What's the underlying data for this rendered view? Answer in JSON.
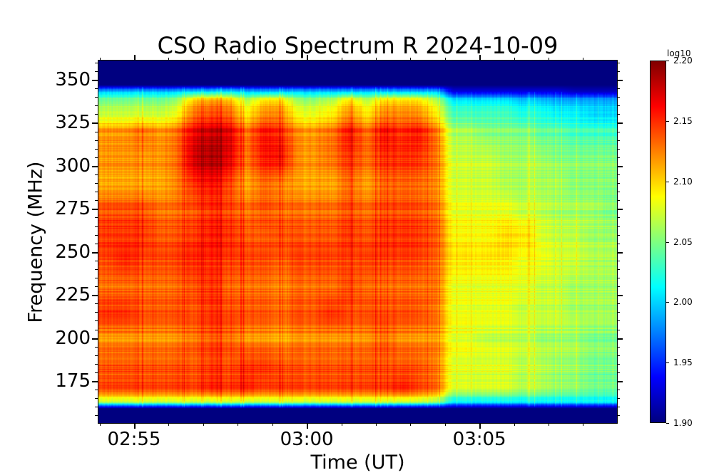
{
  "chart_data": {
    "type": "heatmap",
    "title": "CSO Radio Spectrum R 2024-10-09",
    "xlabel": "Time (UT)",
    "ylabel": "Frequency (MHz)",
    "x_range": [
      "02:53:58",
      "03:08:59"
    ],
    "y_range": [
      150.6,
      361.2
    ],
    "x_ticks": [
      "02:55",
      "03:00",
      "03:05"
    ],
    "x_minor_tick_step_min": 1,
    "y_ticks": [
      175,
      200,
      225,
      250,
      275,
      300,
      325,
      350
    ],
    "y_minor_tick_step": 5,
    "colorbar": {
      "label": "log10",
      "range": [
        1.9,
        2.2
      ],
      "ticks": [
        "1.90",
        "1.95",
        "2.00",
        "2.05",
        "2.10",
        "2.15",
        "2.20"
      ],
      "colormap": "jet"
    },
    "time_start": "02:54:00",
    "time_step_s": 30,
    "rows": [
      {
        "freq": 361,
        "values": 1.9
      },
      {
        "freq": 347,
        "values": 1.9
      },
      {
        "freq": 343,
        "values": [
          2.0,
          2.0,
          2.0,
          2.0,
          2.0,
          2.01,
          2.01,
          2.01,
          2.0,
          2.0,
          2.0,
          2.0,
          2.0,
          2.0,
          2.0,
          2.0,
          2.0,
          2.0,
          2.0,
          2.0,
          1.93,
          1.93,
          1.93,
          1.93,
          1.93,
          1.93,
          1.93,
          1.92,
          1.92,
          1.92
        ]
      },
      {
        "freq": 338,
        "values": [
          2.05,
          2.05,
          2.05,
          2.05,
          2.06,
          2.11,
          2.12,
          2.11,
          2.07,
          2.1,
          2.1,
          2.06,
          2.06,
          2.07,
          2.1,
          2.07,
          2.1,
          2.1,
          2.1,
          2.07,
          2.01,
          2.01,
          2.01,
          2.01,
          2.0,
          2.0,
          1.99,
          1.99,
          1.99,
          1.99
        ]
      },
      {
        "freq": 330,
        "values": [
          2.07,
          2.07,
          2.07,
          2.07,
          2.08,
          2.13,
          2.14,
          2.13,
          2.09,
          2.12,
          2.12,
          2.08,
          2.08,
          2.09,
          2.12,
          2.09,
          2.12,
          2.12,
          2.12,
          2.09,
          2.03,
          2.03,
          2.03,
          2.03,
          2.02,
          2.02,
          2.01,
          2.01,
          2.0,
          2.0
        ]
      },
      {
        "freq": 320,
        "values": [
          2.12,
          2.12,
          2.13,
          2.12,
          2.13,
          2.17,
          2.18,
          2.17,
          2.13,
          2.16,
          2.15,
          2.12,
          2.12,
          2.13,
          2.16,
          2.13,
          2.16,
          2.15,
          2.16,
          2.13,
          2.06,
          2.06,
          2.05,
          2.05,
          2.05,
          2.04,
          2.04,
          2.03,
          2.03,
          2.03
        ]
      },
      {
        "freq": 305,
        "values": [
          2.12,
          2.12,
          2.12,
          2.12,
          2.13,
          2.18,
          2.19,
          2.17,
          2.13,
          2.16,
          2.16,
          2.12,
          2.12,
          2.13,
          2.15,
          2.13,
          2.15,
          2.15,
          2.15,
          2.13,
          2.07,
          2.07,
          2.07,
          2.06,
          2.06,
          2.06,
          2.05,
          2.05,
          2.05,
          2.05
        ]
      },
      {
        "freq": 290,
        "values": [
          2.11,
          2.11,
          2.11,
          2.11,
          2.12,
          2.15,
          2.16,
          2.14,
          2.11,
          2.13,
          2.12,
          2.11,
          2.11,
          2.11,
          2.13,
          2.11,
          2.13,
          2.13,
          2.13,
          2.12,
          2.07,
          2.07,
          2.07,
          2.06,
          2.06,
          2.06,
          2.06,
          2.05,
          2.05,
          2.05
        ]
      },
      {
        "freq": 275,
        "values": [
          2.14,
          2.14,
          2.14,
          2.13,
          2.13,
          2.14,
          2.15,
          2.14,
          2.13,
          2.14,
          2.13,
          2.13,
          2.13,
          2.13,
          2.14,
          2.13,
          2.14,
          2.14,
          2.14,
          2.13,
          2.08,
          2.08,
          2.08,
          2.08,
          2.07,
          2.07,
          2.06,
          2.06,
          2.06,
          2.05
        ]
      },
      {
        "freq": 260,
        "values": [
          2.15,
          2.15,
          2.15,
          2.14,
          2.14,
          2.15,
          2.16,
          2.15,
          2.14,
          2.14,
          2.14,
          2.14,
          2.14,
          2.14,
          2.15,
          2.14,
          2.15,
          2.15,
          2.15,
          2.14,
          2.09,
          2.09,
          2.09,
          2.1,
          2.1,
          2.08,
          2.07,
          2.07,
          2.06,
          2.06
        ]
      },
      {
        "freq": 245,
        "values": [
          2.14,
          2.15,
          2.14,
          2.14,
          2.14,
          2.15,
          2.15,
          2.14,
          2.14,
          2.14,
          2.13,
          2.14,
          2.14,
          2.14,
          2.14,
          2.14,
          2.14,
          2.14,
          2.14,
          2.13,
          2.09,
          2.09,
          2.09,
          2.09,
          2.08,
          2.08,
          2.07,
          2.07,
          2.06,
          2.06
        ]
      },
      {
        "freq": 230,
        "values": [
          2.13,
          2.13,
          2.13,
          2.13,
          2.13,
          2.14,
          2.15,
          2.13,
          2.13,
          2.13,
          2.12,
          2.13,
          2.13,
          2.13,
          2.14,
          2.13,
          2.13,
          2.13,
          2.13,
          2.13,
          2.08,
          2.08,
          2.08,
          2.08,
          2.08,
          2.07,
          2.07,
          2.06,
          2.06,
          2.06
        ]
      },
      {
        "freq": 215,
        "values": [
          2.15,
          2.15,
          2.14,
          2.14,
          2.14,
          2.14,
          2.15,
          2.14,
          2.14,
          2.14,
          2.13,
          2.14,
          2.14,
          2.15,
          2.14,
          2.14,
          2.14,
          2.14,
          2.14,
          2.13,
          2.08,
          2.08,
          2.08,
          2.08,
          2.07,
          2.07,
          2.07,
          2.06,
          2.06,
          2.06
        ]
      },
      {
        "freq": 200,
        "values": [
          2.12,
          2.12,
          2.12,
          2.12,
          2.12,
          2.13,
          2.14,
          2.13,
          2.12,
          2.12,
          2.11,
          2.12,
          2.12,
          2.12,
          2.12,
          2.12,
          2.13,
          2.12,
          2.12,
          2.12,
          2.08,
          2.08,
          2.07,
          2.07,
          2.07,
          2.06,
          2.06,
          2.06,
          2.05,
          2.05
        ]
      },
      {
        "freq": 185,
        "values": [
          2.14,
          2.14,
          2.14,
          2.14,
          2.14,
          2.14,
          2.15,
          2.14,
          2.15,
          2.15,
          2.14,
          2.14,
          2.14,
          2.14,
          2.14,
          2.14,
          2.14,
          2.14,
          2.14,
          2.13,
          2.08,
          2.08,
          2.08,
          2.08,
          2.07,
          2.07,
          2.06,
          2.06,
          2.05,
          2.05
        ]
      },
      {
        "freq": 170,
        "values": [
          2.14,
          2.14,
          2.14,
          2.14,
          2.14,
          2.14,
          2.15,
          2.14,
          2.15,
          2.14,
          2.14,
          2.14,
          2.14,
          2.14,
          2.14,
          2.14,
          2.14,
          2.15,
          2.14,
          2.13,
          2.07,
          2.07,
          2.07,
          2.07,
          2.06,
          2.06,
          2.05,
          2.05,
          2.04,
          2.04
        ]
      },
      {
        "freq": 163,
        "values": [
          2.07,
          2.07,
          2.07,
          2.07,
          2.07,
          2.07,
          2.07,
          2.07,
          2.07,
          2.07,
          2.07,
          2.07,
          2.07,
          2.07,
          2.07,
          2.07,
          2.07,
          2.07,
          2.07,
          2.06,
          2.01,
          2.01,
          2.01,
          2.01,
          2.01,
          2.01,
          2.01,
          2.01,
          2.01,
          2.01
        ]
      },
      {
        "freq": 159,
        "values": 1.9
      },
      {
        "freq": 150,
        "values": 1.9
      }
    ]
  }
}
